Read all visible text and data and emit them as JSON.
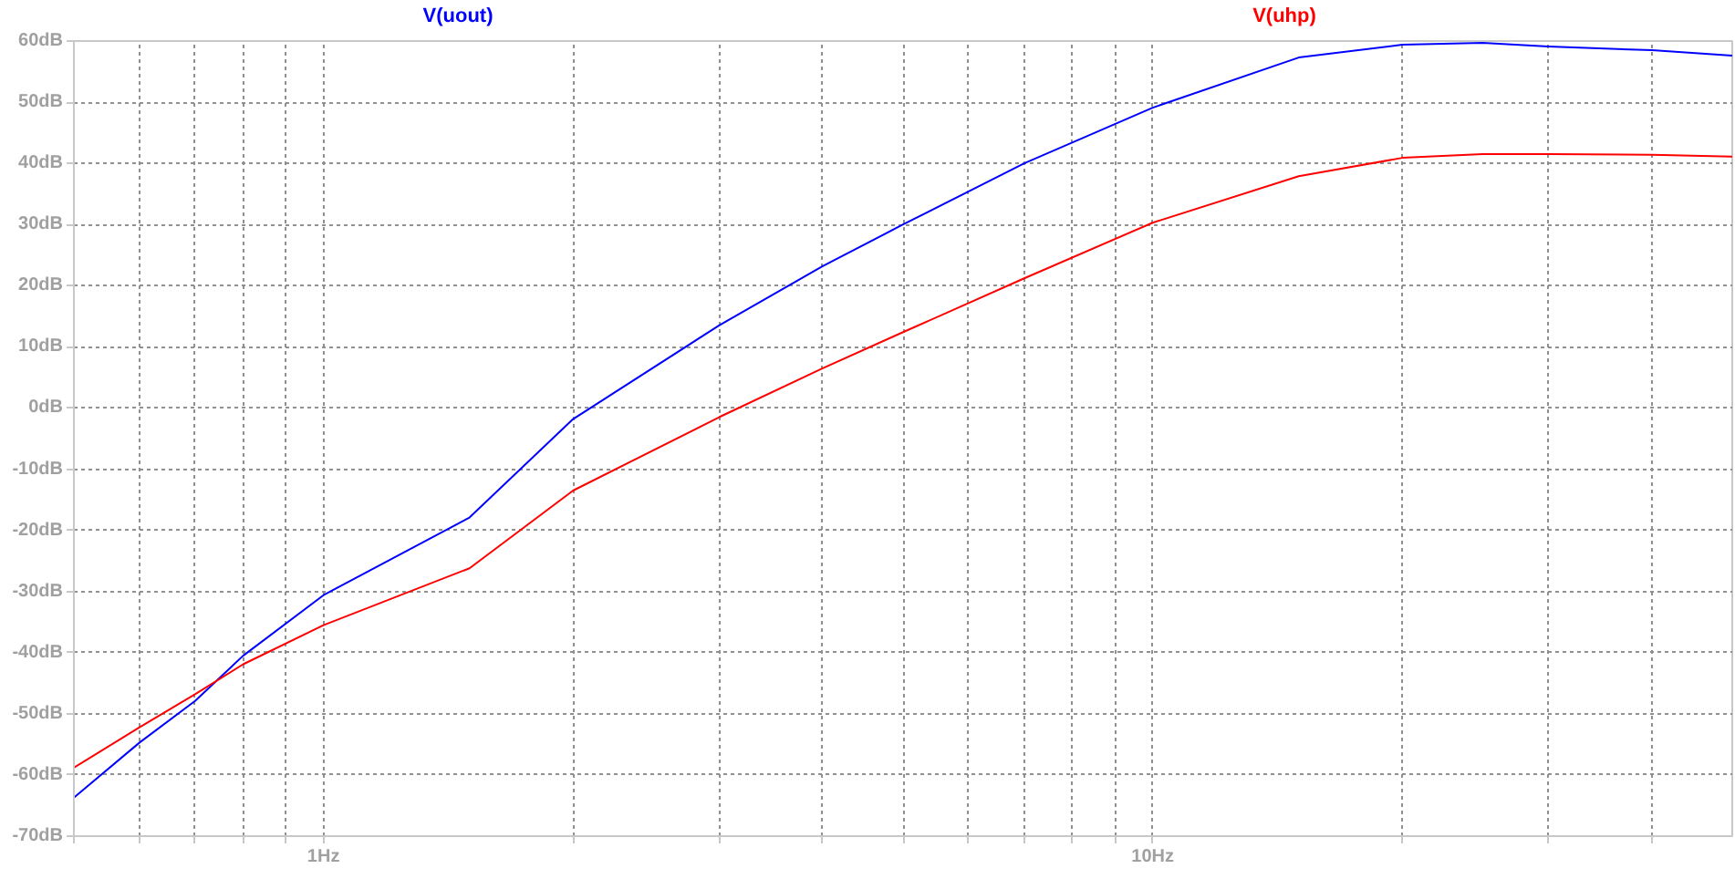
{
  "chart_data": {
    "type": "line",
    "log": "x",
    "grid": true,
    "line_style": "solid",
    "marker": "none",
    "xlim": [
      0.5,
      50
    ],
    "xticks": [
      {
        "value": 0.5,
        "label": null
      },
      {
        "value": 0.6,
        "label": null
      },
      {
        "value": 0.7,
        "label": null
      },
      {
        "value": 0.8,
        "label": null
      },
      {
        "value": 0.9,
        "label": null
      },
      {
        "value": 1,
        "label": "1Hz"
      },
      {
        "value": 2,
        "label": null
      },
      {
        "value": 3,
        "label": null
      },
      {
        "value": 4,
        "label": null
      },
      {
        "value": 5,
        "label": null
      },
      {
        "value": 6,
        "label": null
      },
      {
        "value": 7,
        "label": null
      },
      {
        "value": 8,
        "label": null
      },
      {
        "value": 9,
        "label": null
      },
      {
        "value": 10,
        "label": "10Hz"
      },
      {
        "value": 20,
        "label": null
      },
      {
        "value": 30,
        "label": null
      },
      {
        "value": 40,
        "label": null
      }
    ],
    "ylim": [
      -70,
      60
    ],
    "yticks": [
      {
        "value": -70,
        "label": "-70dB"
      },
      {
        "value": -60,
        "label": "-60dB"
      },
      {
        "value": -50,
        "label": "-50dB"
      },
      {
        "value": -40,
        "label": "-40dB"
      },
      {
        "value": -30,
        "label": "-30dB"
      },
      {
        "value": -20,
        "label": "-20dB"
      },
      {
        "value": -10,
        "label": "-10dB"
      },
      {
        "value": 0,
        "label": "0dB"
      },
      {
        "value": 10,
        "label": "10dB"
      },
      {
        "value": 20,
        "label": "20dB"
      },
      {
        "value": 30,
        "label": "30dB"
      },
      {
        "value": 40,
        "label": "40dB"
      },
      {
        "value": 50,
        "label": "50dB"
      },
      {
        "value": 60,
        "label": "60dB"
      }
    ],
    "x": [
      0.5,
      0.6,
      0.7,
      0.8,
      1,
      1.5,
      2,
      3,
      4,
      5,
      7,
      10,
      15,
      20,
      25,
      30,
      40,
      50
    ],
    "series": [
      {
        "name": "V(uout)",
        "color": "#0000ff",
        "values": [
          -63.7,
          -54.7,
          -47.9,
          -40.5,
          -30.6,
          -17.9,
          -1.8,
          13.5,
          23.2,
          30.0,
          40.0,
          49.1,
          57.3,
          59.4,
          59.7,
          59.1,
          58.5,
          57.6
        ]
      },
      {
        "name": "V(uhp)",
        "color": "#ff0000",
        "values": [
          -58.8,
          -52.2,
          -46.8,
          -41.9,
          -35.5,
          -26.2,
          -13.5,
          -1.5,
          6.5,
          12.4,
          21.2,
          30.3,
          37.9,
          40.9,
          41.5,
          41.5,
          41.4,
          41.1
        ]
      }
    ]
  }
}
